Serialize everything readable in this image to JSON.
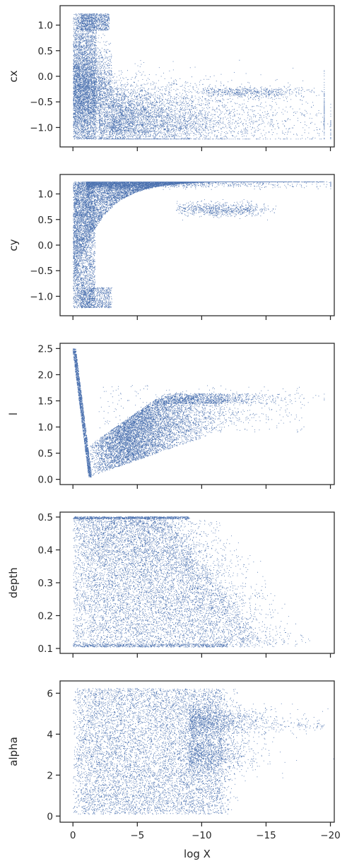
{
  "chart_data": {
    "type": "scatter",
    "layout": "vertical-stack, shared x axis",
    "x": {
      "label": "log X",
      "range": [
        1,
        -20.3
      ],
      "ticks": [
        0,
        -5,
        -10,
        -15,
        -20
      ],
      "tick_labels": [
        "0",
        "−5",
        "−10",
        "−15",
        "−20"
      ]
    },
    "point_color": "#4c72b0",
    "grid": false,
    "legend": "none",
    "panels": [
      {
        "ylabel": "cx",
        "ylim": [
          -1.38,
          1.38
        ],
        "yticks": [
          1.0,
          0.5,
          0.0,
          -0.5,
          -1.0
        ],
        "ytick_labels": [
          "1.0",
          "0.5",
          "0.0",
          "−0.5",
          "−1.0"
        ],
        "xticklabels_visible": false,
        "sample_points": [
          [
            -0.1,
            1.2
          ],
          [
            -0.5,
            0.4
          ],
          [
            -1.5,
            1.0
          ],
          [
            -1.8,
            0.9
          ],
          [
            -2.5,
            0.1
          ],
          [
            -3.0,
            -0.3
          ],
          [
            -4.0,
            -1.1
          ],
          [
            -6.0,
            -0.7
          ],
          [
            -8.0,
            -0.9
          ],
          [
            -10.0,
            -0.8
          ],
          [
            -11.0,
            -0.45
          ],
          [
            -13.0,
            -0.3
          ],
          [
            -15.5,
            -0.28
          ],
          [
            -19.0,
            -0.3
          ]
        ]
      },
      {
        "ylabel": "cy",
        "ylim": [
          -1.38,
          1.38
        ],
        "yticks": [
          1.0,
          0.5,
          0.0,
          -0.5,
          -1.0
        ],
        "ytick_labels": [
          "1.0",
          "0.5",
          "0.0",
          "−0.5",
          "−1.0"
        ],
        "xticklabels_visible": false,
        "sample_points": [
          [
            -0.2,
            -1.2
          ],
          [
            -0.5,
            0.2
          ],
          [
            -1.2,
            -1.1
          ],
          [
            -2.0,
            -0.8
          ],
          [
            -3.0,
            0.5
          ],
          [
            -5.0,
            1.0
          ],
          [
            -8.0,
            0.8
          ],
          [
            -10.0,
            1.2
          ],
          [
            -12.0,
            0.6
          ],
          [
            -14.0,
            1.2
          ],
          [
            -16.0,
            0.65
          ],
          [
            -19.0,
            1.15
          ]
        ]
      },
      {
        "ylabel": "l",
        "ylim": [
          -0.1,
          2.6
        ],
        "yticks": [
          0.0,
          0.5,
          1.0,
          1.5,
          2.0,
          2.5
        ],
        "ytick_labels": [
          "0.0",
          "0.5",
          "1.0",
          "1.5",
          "2.0",
          "2.5"
        ],
        "xticklabels_visible": false,
        "sample_points": [
          [
            -0.1,
            2.5
          ],
          [
            -0.3,
            2.0
          ],
          [
            -0.8,
            1.0
          ],
          [
            -1.3,
            0.05
          ],
          [
            -2.0,
            0.4
          ],
          [
            -4.0,
            0.6
          ],
          [
            -7.0,
            0.9
          ],
          [
            -10.0,
            1.1
          ],
          [
            -12.0,
            1.0
          ],
          [
            -14.0,
            1.1
          ],
          [
            -17.0,
            1.05
          ],
          [
            -19.0,
            0.95
          ]
        ]
      },
      {
        "ylabel": "depth",
        "ylim": [
          0.085,
          0.515
        ],
        "yticks": [
          0.1,
          0.2,
          0.3,
          0.4,
          0.5
        ],
        "ytick_labels": [
          "0.1",
          "0.2",
          "0.3",
          "0.4",
          "0.5"
        ],
        "xticklabels_visible": false,
        "sample_points": [
          [
            -0.1,
            0.5
          ],
          [
            -1.0,
            0.1
          ],
          [
            -3.0,
            0.35
          ],
          [
            -6.0,
            0.5
          ],
          [
            -8.0,
            0.2
          ],
          [
            -10.0,
            0.45
          ],
          [
            -12.0,
            0.3
          ],
          [
            -14.0,
            0.25
          ],
          [
            -16.0,
            0.2
          ],
          [
            -18.0,
            0.17
          ],
          [
            -19.4,
            0.17
          ]
        ]
      },
      {
        "ylabel": "alpha",
        "ylim": [
          -0.3,
          6.6
        ],
        "yticks": [
          0,
          2,
          4,
          6
        ],
        "ytick_labels": [
          "0",
          "2",
          "4",
          "6"
        ],
        "xticklabels_visible": true,
        "sample_points": [
          [
            -0.1,
            6.2
          ],
          [
            -1.0,
            0.1
          ],
          [
            -3.0,
            3.0
          ],
          [
            -6.0,
            6.2
          ],
          [
            -9.0,
            1.0
          ],
          [
            -11.0,
            4.5
          ],
          [
            -13.0,
            4.6
          ],
          [
            -15.0,
            4.5
          ],
          [
            -12.0,
            3.0
          ],
          [
            -13.5,
            3.1
          ],
          [
            -19.0,
            4.5
          ]
        ]
      }
    ]
  }
}
